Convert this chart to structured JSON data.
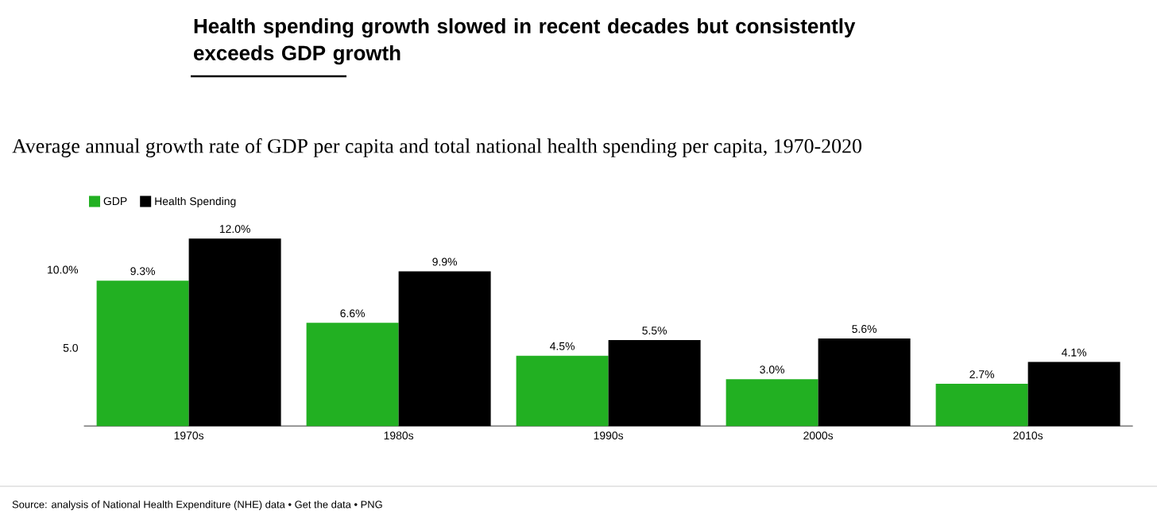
{
  "chart_data": {
    "type": "bar",
    "title": "Health spending growth slowed in recent decades but consistently exceeds GDP growth",
    "subtitle": "Average annual growth rate of GDP per capita and total national health spending per capita, 1970-2020",
    "categories": [
      "1970s",
      "1980s",
      "1990s",
      "2000s",
      "2010s"
    ],
    "series": [
      {
        "name": "GDP",
        "color": "#22b022",
        "values": [
          9.3,
          6.6,
          4.5,
          3.0,
          2.7
        ],
        "value_labels": [
          "9.3%",
          "6.6%",
          "4.5%",
          "3.0%",
          "2.7%"
        ]
      },
      {
        "name": "Health Spending",
        "color": "#000000",
        "values": [
          12.0,
          9.9,
          5.5,
          5.6,
          4.1
        ],
        "value_labels": [
          "12.0%",
          "9.9%",
          "5.5%",
          "5.6%",
          "4.1%"
        ]
      }
    ],
    "ylim": [
      0,
      12
    ],
    "yticks": [
      {
        "value": 5,
        "label": "5.0"
      },
      {
        "value": 10,
        "label": "10.0%"
      }
    ],
    "legend": "top left",
    "annotations": [
      "Source: analysis of National Health Expenditure (NHE) data • Get the data • PNG"
    ]
  }
}
